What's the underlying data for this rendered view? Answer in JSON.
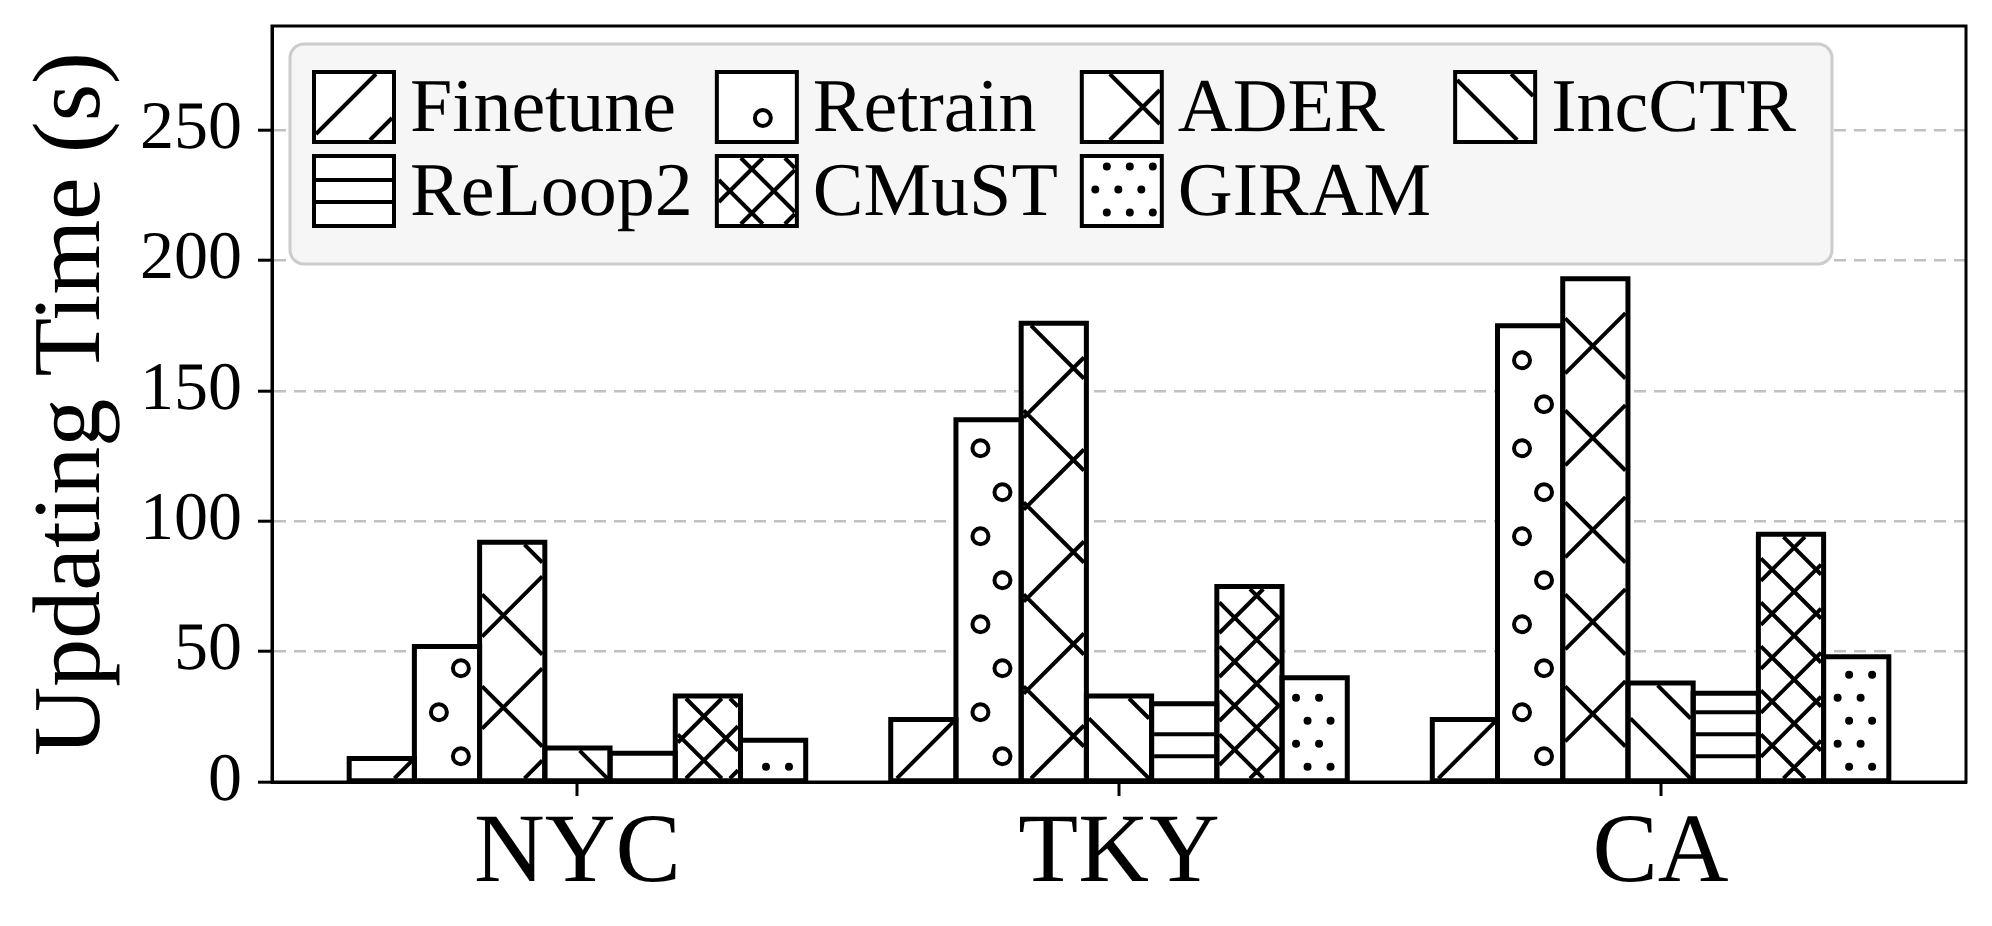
{
  "chart_data": {
    "type": "bar",
    "ylabel": "Updating Time (s)",
    "categories": [
      "NYC",
      "TKY",
      "CA"
    ],
    "series": [
      {
        "name": "Finetune",
        "color": "#ffffff",
        "values": [
          9,
          24,
          24
        ]
      },
      {
        "name": "Retrain",
        "color": "#ffffff",
        "values": [
          52,
          139,
          175
        ]
      },
      {
        "name": "ADER",
        "color": "#ffffff",
        "values": [
          92,
          176,
          193
        ]
      },
      {
        "name": "IncCTR",
        "color": "#ffffff",
        "values": [
          13,
          33,
          38
        ]
      },
      {
        "name": "ReLoop2",
        "color": "#ffffff",
        "values": [
          11,
          30,
          34
        ]
      },
      {
        "name": "CMuST",
        "color": "#ffffff",
        "values": [
          33,
          75,
          95
        ]
      },
      {
        "name": "GIRAM",
        "color": "#ffffff",
        "values": [
          16,
          40,
          48
        ]
      }
    ],
    "ylim": [
      0,
      290
    ],
    "yticks": [
      0,
      50,
      100,
      150,
      200,
      250
    ],
    "grid": "y",
    "legend": "top left"
  }
}
